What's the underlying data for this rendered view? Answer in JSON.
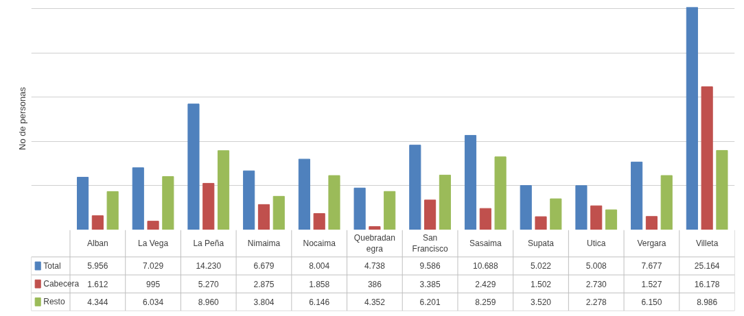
{
  "chart_data": {
    "type": "bar",
    "ylabel": "No de personas",
    "categories": [
      "Alban",
      "La Vega",
      "La Peña",
      "Nimaima",
      "Nocaima",
      "Quebradanegra",
      "San Francisco",
      "Sasaima",
      "Supata",
      "Utica",
      "Vergara",
      "Villeta"
    ],
    "series": [
      {
        "name": "Total",
        "color": "#4f81bd",
        "values": [
          5956,
          7029,
          14230,
          6679,
          8004,
          4738,
          9586,
          10688,
          5022,
          5008,
          7677,
          25164
        ],
        "value_labels": [
          "5.956",
          "7.029",
          "14.230",
          "6.679",
          "8.004",
          "4.738",
          "9.586",
          "10.688",
          "5.022",
          "5.008",
          "7.677",
          "25.164"
        ]
      },
      {
        "name": "Cabecera",
        "color": "#c0504d",
        "values": [
          1612,
          995,
          5270,
          2875,
          1858,
          386,
          3385,
          2429,
          1502,
          2730,
          1527,
          16178
        ],
        "value_labels": [
          "1.612",
          "995",
          "5.270",
          "2.875",
          "1.858",
          "386",
          "3.385",
          "2.429",
          "1.502",
          "2.730",
          "1.527",
          "16.178"
        ]
      },
      {
        "name": "Resto",
        "color": "#9bbb59",
        "values": [
          4344,
          6034,
          8960,
          3804,
          6146,
          4352,
          6201,
          8259,
          3520,
          2278,
          6150,
          8986
        ],
        "value_labels": [
          "4.344",
          "6.034",
          "8.960",
          "3.804",
          "6.146",
          "4.352",
          "6.201",
          "8.259",
          "3.520",
          "2.278",
          "6.150",
          "8.986"
        ]
      }
    ],
    "grid": "y",
    "legend": "bottom"
  }
}
